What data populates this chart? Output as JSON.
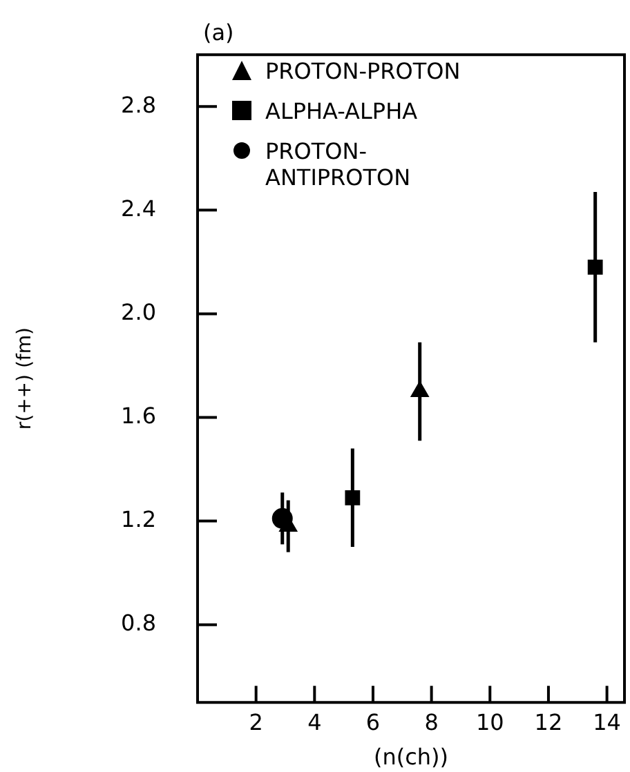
{
  "chart_data": {
    "type": "scatter",
    "xlabel": "(n(ch))",
    "ylabel": "r(++) (fm)",
    "annotations": [
      "(a)"
    ],
    "xlim": [
      0,
      14.6
    ],
    "xticks": [
      2,
      4,
      6,
      8,
      10,
      12,
      14
    ],
    "ylim": [
      0.5,
      3.0
    ],
    "yticks": [
      {
        "value": 0.8,
        "label": "0.8"
      },
      {
        "value": 1.2,
        "label": "1.2"
      },
      {
        "value": 1.6,
        "label": "1.6"
      },
      {
        "value": 2.0,
        "label": "2.0"
      },
      {
        "value": 2.4,
        "label": "2.4"
      },
      {
        "value": 2.8,
        "label": "2.8"
      }
    ],
    "grid": false,
    "legend": "top left",
    "series": [
      {
        "name": "PROTON-PROTON",
        "color": "#000000",
        "marker": "triangle",
        "x": [
          3.1,
          7.6
        ],
        "values": [
          1.18,
          1.7
        ],
        "errors": [
          0.1,
          0.19
        ]
      },
      {
        "name": "ALPHA-ALPHA",
        "color": "#000000",
        "marker": "square",
        "x": [
          5.3,
          13.6
        ],
        "values": [
          1.29,
          2.18
        ],
        "errors": [
          0.19,
          0.29
        ]
      },
      {
        "name": "PROTON-\nANTIPROTON",
        "color": "#000000",
        "marker": "circle",
        "x": [
          2.9
        ],
        "values": [
          1.21
        ],
        "errors": [
          0.1
        ]
      }
    ]
  }
}
